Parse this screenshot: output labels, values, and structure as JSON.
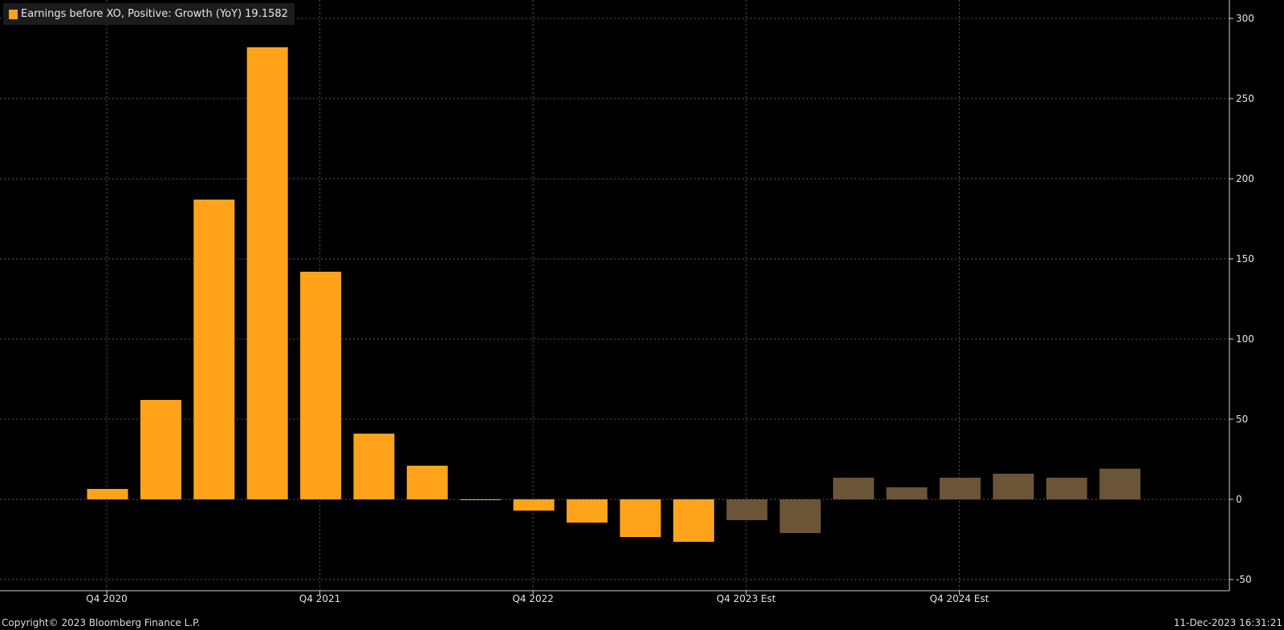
{
  "colors": {
    "background": "#000000",
    "actual_bar": "#ffa31a",
    "estimate_bar": "#6b5537",
    "grid": "#5a5a5a",
    "axis": "#cfcfcf",
    "text": "#e6e6e6"
  },
  "legend": {
    "label": "Earnings before XO, Positive: Growth (YoY)",
    "value": "19.1582"
  },
  "footer": {
    "copyright": "Copyright© 2023 Bloomberg Finance L.P.",
    "timestamp": "11-Dec-2023 16:31:21"
  },
  "chart_data": {
    "type": "bar",
    "title": "",
    "xlabel": "",
    "ylabel": "",
    "ylim": [
      -50,
      300
    ],
    "yticks": [
      300,
      250,
      200,
      150,
      100,
      50,
      0,
      -50
    ],
    "grid": true,
    "legend_position": "top-left",
    "y_axis_side": "right",
    "x_tick_labels": [
      {
        "label": "Q4 2020",
        "index": 0
      },
      {
        "label": "Q4 2021",
        "index": 4
      },
      {
        "label": "Q4 2022",
        "index": 8
      },
      {
        "label": "Q4 2023 Est",
        "index": 12
      },
      {
        "label": "Q4 2024 Est",
        "index": 16
      }
    ],
    "series": [
      {
        "name": "Earnings before XO, Positive: Growth (YoY)",
        "values": [
          6.5,
          62,
          187,
          282,
          142,
          41,
          21,
          -0.5,
          -7,
          -14.5,
          -23.5,
          -26.5,
          -13,
          -21,
          13.5,
          7.5,
          13.5,
          16,
          13.5,
          19.1582
        ],
        "estimate": [
          false,
          false,
          false,
          false,
          false,
          false,
          false,
          false,
          false,
          false,
          false,
          false,
          true,
          true,
          true,
          true,
          true,
          true,
          true,
          true
        ]
      }
    ]
  }
}
